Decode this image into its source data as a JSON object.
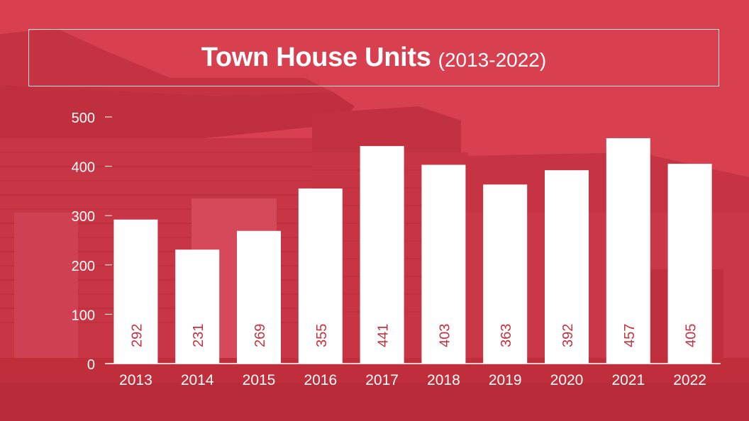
{
  "title": {
    "main": "Town House Units",
    "sub": "(2013-2022)"
  },
  "colors": {
    "background": "#d23a48",
    "bar": "#ffffff",
    "bar_label": "#c8323f",
    "text": "#ffffff"
  },
  "chart_data": {
    "type": "bar",
    "title": "Town House Units (2013-2022)",
    "xlabel": "",
    "ylabel": "",
    "categories": [
      "2013",
      "2014",
      "2015",
      "2016",
      "2017",
      "2018",
      "2019",
      "2020",
      "2021",
      "2022"
    ],
    "values": [
      292,
      231,
      269,
      355,
      441,
      403,
      363,
      392,
      457,
      405
    ],
    "ylim": [
      0,
      500
    ],
    "yticks": [
      0,
      100,
      200,
      300,
      400,
      500
    ],
    "grid": false,
    "data_labels": true,
    "data_label_orientation": "vertical"
  }
}
